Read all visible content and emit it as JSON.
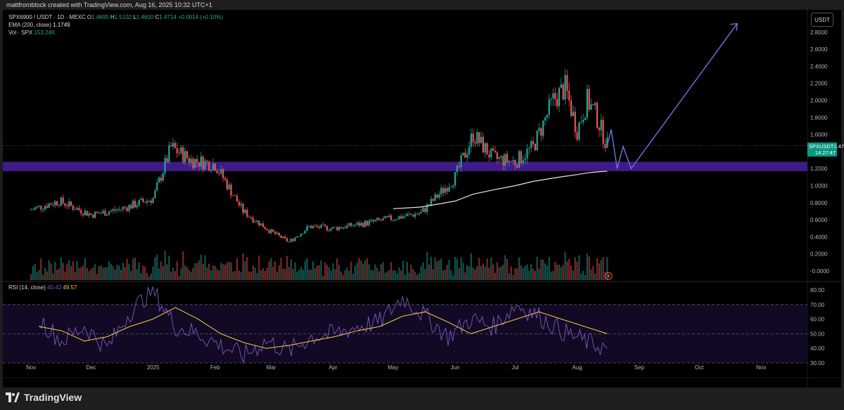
{
  "header": {
    "attribution": "mattfromblock created with TradingView.com, Aug 16, 2025 10:32 UTC+1"
  },
  "legend": {
    "symbol_line": "SPX6900 / USDT · 1D · MEXC",
    "ohlc": {
      "o_label": "O",
      "o": "1.4695",
      "h_label": "H",
      "h": "1.5102",
      "l_label": "L",
      "l": "1.4600",
      "c_label": "C",
      "c": "1.4714",
      "change": "+0.0014 (+0.10%)"
    },
    "ema_label": "EMA (200, close)",
    "ema_value": "1.1749",
    "vol_label": "Vol · SPX",
    "vol_value": "153.24K",
    "rsi_label": "RSI (14, close)",
    "rsi_value": "40.42",
    "rsi_ma_value": "49.57"
  },
  "price_scale": {
    "currency_button": "USDT",
    "ticks": [
      "2.8000",
      "2.6000",
      "2.4000",
      "2.2000",
      "2.0000",
      "1.8000",
      "1.6000",
      "1.2000",
      "1.0000",
      "0.8000",
      "0.6000",
      "0.4000",
      "0.2000",
      "-0.0000"
    ]
  },
  "rsi_scale": {
    "ticks": [
      "80.00",
      "70.00",
      "60.00",
      "50.00",
      "40.00",
      "30.00"
    ]
  },
  "price_tag": {
    "symbol": "SPXUSDT",
    "price": "1.4714",
    "countdown": "14:27:47"
  },
  "time_axis": {
    "labels": [
      "Nov",
      "Dec",
      "2025",
      "Feb",
      "Mar",
      "Apr",
      "May",
      "Jun",
      "Jul",
      "Aug",
      "Sep",
      "Oct",
      "Nov"
    ]
  },
  "brand": {
    "name": "TradingView"
  },
  "colors": {
    "up": "#26a69a",
    "down": "#ef5350",
    "zone": "#4b1fa0",
    "projection": "#7b6ee6",
    "ema": "#e8e8e8",
    "rsi": "#7e57c2",
    "rsi_ma": "#f2c94c"
  },
  "chart_data": [
    {
      "type": "candlestick",
      "symbol": "SPX6900 / USDT",
      "interval": "1D",
      "exchange": "MEXC",
      "x": [
        "2024-11-01",
        "2024-11-15",
        "2024-12-01",
        "2024-12-15",
        "2025-01-01",
        "2025-01-10",
        "2025-01-20",
        "2025-02-01",
        "2025-02-15",
        "2025-03-01",
        "2025-03-10",
        "2025-03-20",
        "2025-04-01",
        "2025-04-15",
        "2025-05-01",
        "2025-05-15",
        "2025-06-01",
        "2025-06-10",
        "2025-06-20",
        "2025-07-01",
        "2025-07-10",
        "2025-07-20",
        "2025-07-26",
        "2025-08-01",
        "2025-08-06",
        "2025-08-10",
        "2025-08-16"
      ],
      "close": [
        0.72,
        0.82,
        0.66,
        0.72,
        0.85,
        1.45,
        1.3,
        1.25,
        0.7,
        0.46,
        0.34,
        0.52,
        0.5,
        0.55,
        0.62,
        0.68,
        1.1,
        1.6,
        1.32,
        1.28,
        1.45,
        2.0,
        2.15,
        1.65,
        2.0,
        1.85,
        1.47
      ],
      "ema": {
        "label": "EMA (200, close)",
        "values": [
          null,
          null,
          null,
          null,
          null,
          null,
          null,
          null,
          null,
          null,
          null,
          null,
          null,
          null,
          0.73,
          0.75,
          0.82,
          0.9,
          0.95,
          1.0,
          1.05,
          1.09,
          1.11,
          1.13,
          1.15,
          1.16,
          1.17
        ]
      },
      "volume_label": "Vol · SPX",
      "last": {
        "open": 1.4695,
        "high": 1.5102,
        "low": 1.46,
        "close": 1.4714,
        "change": 0.0014,
        "change_pct": 0.1,
        "ema200": 1.1749,
        "volume": "153.24K"
      },
      "support_zone": [
        1.17,
        1.28
      ],
      "projection": [
        {
          "x": "2025-08-16",
          "y": 1.47
        },
        {
          "x": "2025-08-18",
          "y": 1.66
        },
        {
          "x": "2025-08-21",
          "y": 1.2
        },
        {
          "x": "2025-08-24",
          "y": 1.46
        },
        {
          "x": "2025-08-28",
          "y": 1.2
        },
        {
          "x": "2025-10-20",
          "y": 2.9
        }
      ],
      "ylim": [
        -0.05,
        3.0
      ],
      "ylabel": "USDT"
    },
    {
      "type": "line",
      "label": "RSI (14, close)",
      "series": [
        {
          "name": "RSI",
          "last": 40.42,
          "values": [
            60,
            45,
            55,
            40,
            65,
            80,
            55,
            50,
            42,
            35,
            45,
            38,
            48,
            50,
            55,
            58,
            75,
            62,
            48,
            60,
            55,
            70,
            62,
            52,
            45,
            40
          ]
        },
        {
          "name": "RSI MA",
          "last": 49.57,
          "values": [
            55,
            52,
            45,
            48,
            55,
            60,
            68,
            60,
            50,
            44,
            40,
            42,
            45,
            48,
            52,
            55,
            62,
            65,
            58,
            50,
            55,
            60,
            65,
            60,
            55,
            50
          ]
        }
      ],
      "ylim": [
        30,
        80
      ],
      "levels": [
        70,
        50,
        30
      ]
    }
  ]
}
